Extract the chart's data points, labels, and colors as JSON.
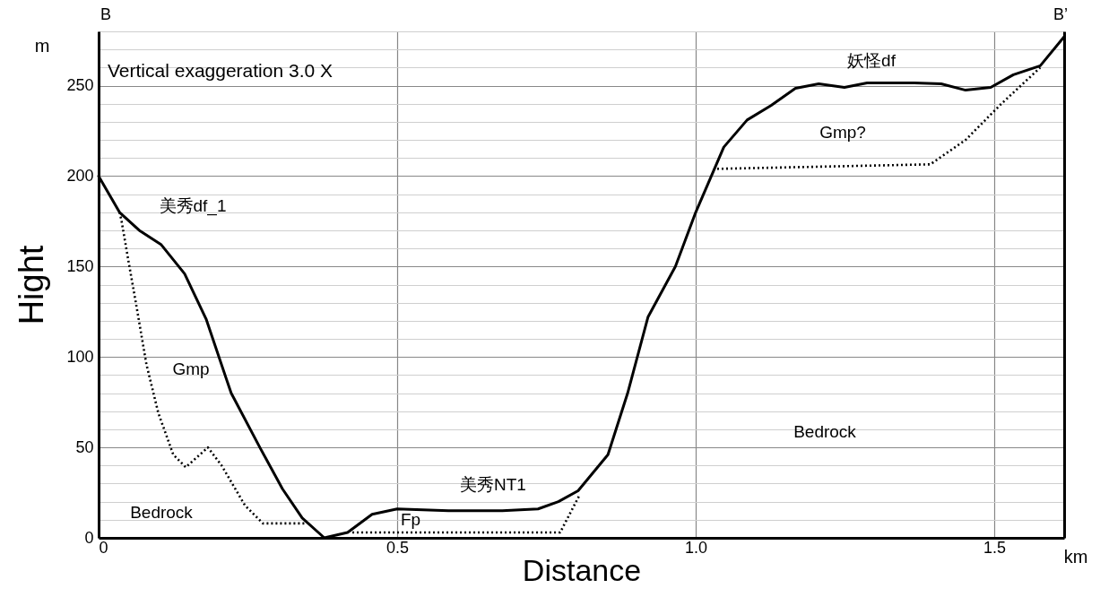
{
  "chart_data": {
    "type": "line",
    "xlabel": "Distance",
    "ylabel": "Hight",
    "xlim": [
      0,
      1.617
    ],
    "xticks": [
      0,
      0.5,
      {
        "value": 1,
        "label": "1.0"
      },
      1.5
    ],
    "ylim": [
      0,
      280
    ],
    "yticks": [
      0,
      {
        "value": 10,
        "label": null
      },
      {
        "value": 20,
        "label": null
      },
      {
        "value": 30,
        "label": null
      },
      {
        "value": 40,
        "label": null
      },
      50,
      {
        "value": 60,
        "label": null
      },
      {
        "value": 70,
        "label": null
      },
      {
        "value": 80,
        "label": null
      },
      {
        "value": 90,
        "label": null
      },
      100,
      {
        "value": 110,
        "label": null
      },
      {
        "value": 120,
        "label": null
      },
      {
        "value": 130,
        "label": null
      },
      {
        "value": 140,
        "label": null
      },
      150,
      {
        "value": 160,
        "label": null
      },
      {
        "value": 170,
        "label": null
      },
      {
        "value": 180,
        "label": null
      },
      {
        "value": 190,
        "label": null
      },
      200,
      {
        "value": 210,
        "label": null
      },
      {
        "value": 220,
        "label": null
      },
      {
        "value": 230,
        "label": null
      },
      {
        "value": 240,
        "label": null
      },
      250,
      {
        "value": 260,
        "label": null
      },
      {
        "value": 270,
        "label": null
      },
      {
        "value": 280,
        "label": null
      }
    ],
    "grid": true,
    "marker": "none",
    "series": [
      {
        "color": "#000000",
        "line_style": "solid",
        "x": [
          0,
          0.035,
          0.068,
          0.105,
          0.144,
          0.18,
          0.222,
          0.27,
          0.308,
          0.341,
          0.378,
          0.417,
          0.458,
          0.5,
          0.586,
          0.676,
          0.736,
          0.77,
          0.803,
          0.853,
          0.886,
          0.92,
          0.966,
          1.0,
          1.047,
          1.086,
          1.126,
          1.167,
          1.206,
          1.249,
          1.287,
          1.366,
          1.411,
          1.452,
          1.494,
          1.532,
          1.577,
          1.617
        ],
        "values": [
          200,
          180,
          170,
          162,
          146,
          121,
          80,
          50,
          27,
          11,
          0,
          3,
          13,
          16,
          15,
          15,
          16,
          20,
          26,
          46,
          80,
          122,
          150,
          180,
          216,
          231,
          239,
          248.5,
          251,
          249,
          251.5,
          251.5,
          251,
          247.5,
          249,
          256,
          261,
          277
        ]
      },
      {
        "color": "#000000",
        "line_style": "dotted",
        "x": [
          0.035,
          0.038,
          0.05,
          0.065,
          0.08,
          0.1,
          0.125,
          0.146,
          0.183,
          0.206,
          0.245,
          0.275,
          0.345,
          0.38,
          0.425,
          0.773,
          0.806,
          0.9,
          1.036,
          1.393,
          1.452,
          1.512,
          1.577
        ],
        "values": [
          180,
          176,
          153,
          125,
          96,
          69,
          46,
          39,
          50,
          40,
          18,
          8,
          8,
          null,
          3,
          3,
          24,
          null,
          204,
          206.5,
          220,
          240,
          260
        ]
      }
    ],
    "annotations": [
      "Vertical exaggeration 3.0 X",
      "B",
      "B’",
      "m",
      "km",
      "美秀df_1",
      "Gmp",
      "Bedrock",
      "Fp",
      "美秀NT1",
      "妖怪df",
      "Gmp?",
      "Bedrock"
    ]
  }
}
